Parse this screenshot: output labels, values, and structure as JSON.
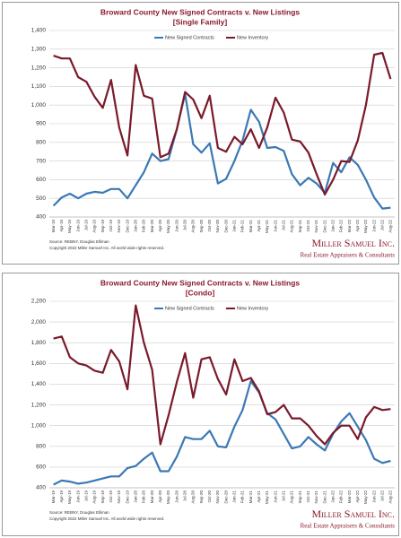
{
  "chart_data": [
    {
      "type": "line",
      "title": "Broward County New Signed Contracts v. New Listings",
      "subtitle": "[Single Family]",
      "categories": [
        "Mar-19",
        "Apr-19",
        "May-19",
        "Jun-19",
        "Jul-19",
        "Aug-19",
        "Sep-19",
        "Oct-19",
        "Nov-19",
        "Dec-19",
        "Jan-20",
        "Feb-20",
        "Mar-20",
        "Apr-20",
        "May-20",
        "Jun-20",
        "Jul-20",
        "Aug-20",
        "Sep-20",
        "Oct-20",
        "Nov-20",
        "Dec-20",
        "Jan-21",
        "Feb-21",
        "Mar-21",
        "Apr-21",
        "May-21",
        "Jun-21",
        "Jul-21",
        "Aug-21",
        "Sep-21",
        "Oct-21",
        "Nov-21",
        "Dec-21",
        "Jan-22",
        "Feb-22",
        "Mar-22",
        "Apr-22",
        "May-22",
        "Jun-22",
        "Jul-22",
        "Aug-22"
      ],
      "series": [
        {
          "name": "New Signed Contracts",
          "color": "#3a78b5",
          "values": [
            460,
            505,
            525,
            500,
            525,
            535,
            530,
            550,
            550,
            500,
            570,
            640,
            740,
            700,
            710,
            870,
            1060,
            790,
            745,
            795,
            580,
            605,
            700,
            810,
            975,
            910,
            770,
            775,
            755,
            630,
            570,
            610,
            580,
            530,
            690,
            640,
            720,
            680,
            600,
            505,
            445,
            450
          ]
        },
        {
          "name": "New Inventory",
          "color": "#7a1a2a",
          "values": [
            1265,
            1250,
            1250,
            1150,
            1125,
            1045,
            985,
            1135,
            880,
            730,
            1215,
            1050,
            1035,
            720,
            740,
            870,
            1070,
            1030,
            930,
            1050,
            770,
            750,
            830,
            790,
            870,
            770,
            880,
            1040,
            960,
            815,
            805,
            745,
            630,
            520,
            600,
            700,
            695,
            810,
            1000,
            1270,
            1280,
            1140
          ]
        }
      ],
      "ylim": [
        400,
        1400
      ],
      "yticks": [
        400,
        500,
        600,
        700,
        800,
        900,
        {
          "value": 1000,
          "label": "1,000"
        },
        {
          "value": 1100,
          "label": "1,100"
        },
        {
          "value": 1200,
          "label": "1,200"
        },
        {
          "value": 1300,
          "label": "1,300"
        },
        {
          "value": 1400,
          "label": "1,400"
        }
      ],
      "source": "Source: REBNY, Douglas Elliman",
      "copyright": "Copyright 2022 Miller Samuel Inc. All world wide rights reserved.",
      "brand": "Miller Samuel Inc.",
      "brand_tagline": "Real Estate Appraisers & Consultants"
    },
    {
      "type": "line",
      "title": "Broward County New Signed Contracts v. New Listings",
      "subtitle": "[Condo]",
      "categories": [
        "Mar-19",
        "Apr-19",
        "May-19",
        "Jun-19",
        "Jul-19",
        "Aug-19",
        "Sep-19",
        "Oct-19",
        "Nov-19",
        "Dec-19",
        "Jan-20",
        "Feb-20",
        "Mar-20",
        "Apr-20",
        "May-20",
        "Jun-20",
        "Jul-20",
        "Aug-20",
        "Sep-20",
        "Oct-20",
        "Nov-20",
        "Dec-20",
        "Jan-21",
        "Feb-21",
        "Mar-21",
        "Apr-21",
        "May-21",
        "Jun-21",
        "Jul-21",
        "Aug-21",
        "Sep-21",
        "Oct-21",
        "Nov-21",
        "Dec-21",
        "Jan-22",
        "Feb-22",
        "Mar-22",
        "Apr-22",
        "May-22",
        "Jun-22",
        "Jul-22",
        "Aug-22"
      ],
      "series": [
        {
          "name": "New Signed Contracts",
          "color": "#3a78b5",
          "values": [
            430,
            470,
            460,
            440,
            450,
            470,
            490,
            510,
            510,
            590,
            610,
            680,
            740,
            560,
            560,
            700,
            890,
            870,
            870,
            950,
            800,
            790,
            990,
            1150,
            1430,
            1320,
            1120,
            1060,
            920,
            780,
            800,
            890,
            820,
            760,
            920,
            1040,
            1120,
            990,
            860,
            680,
            640,
            660
          ]
        },
        {
          "name": "New Inventory",
          "color": "#7a1a2a",
          "values": [
            1840,
            1860,
            1660,
            1600,
            1580,
            1530,
            1510,
            1730,
            1620,
            1350,
            2160,
            1800,
            1540,
            820,
            1100,
            1420,
            1700,
            1270,
            1640,
            1660,
            1450,
            1300,
            1640,
            1430,
            1460,
            1330,
            1110,
            1130,
            1200,
            1070,
            1070,
            1000,
            900,
            820,
            930,
            1000,
            1000,
            870,
            1080,
            1180,
            1150,
            1160
          ]
        }
      ],
      "ylim": [
        400,
        2200
      ],
      "yticks": [
        400,
        600,
        800,
        {
          "value": 1000,
          "label": "1,000"
        },
        {
          "value": 1200,
          "label": "1,200"
        },
        {
          "value": 1400,
          "label": "1,400"
        },
        {
          "value": 1600,
          "label": "1,600"
        },
        {
          "value": 1800,
          "label": "1,800"
        },
        {
          "value": 2000,
          "label": "2,000"
        },
        {
          "value": 2200,
          "label": "2,200"
        }
      ],
      "source": "Source: REBNY, Douglas Elliman",
      "copyright": "Copyright 2022 Miller Samuel Inc. All world wide rights reserved.",
      "brand": "Miller Samuel Inc.",
      "brand_tagline": "Real Estate Appraisers & Consultants"
    }
  ]
}
